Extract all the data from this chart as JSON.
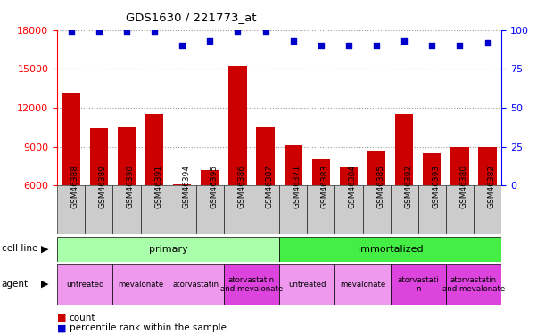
{
  "title": "GDS1630 / 221773_at",
  "samples": [
    "GSM46388",
    "GSM46389",
    "GSM46390",
    "GSM46391",
    "GSM46394",
    "GSM46395",
    "GSM46386",
    "GSM46387",
    "GSM46371",
    "GSM46383",
    "GSM46384",
    "GSM46385",
    "GSM46392",
    "GSM46393",
    "GSM46380",
    "GSM46382"
  ],
  "counts": [
    13200,
    10400,
    10500,
    11500,
    6100,
    7200,
    15200,
    10500,
    9100,
    8100,
    7400,
    8700,
    11500,
    8500,
    9000,
    9000
  ],
  "percentile_ranks": [
    99,
    99,
    99,
    99,
    90,
    93,
    99,
    99,
    93,
    90,
    90,
    90,
    93,
    90,
    90,
    92
  ],
  "bar_color": "#cc0000",
  "dot_color": "#0000cc",
  "ylim_left": [
    6000,
    18000
  ],
  "ylim_right": [
    0,
    100
  ],
  "yticks_left": [
    6000,
    9000,
    12000,
    15000,
    18000
  ],
  "yticks_right": [
    0,
    25,
    50,
    75,
    100
  ],
  "grid_color": "#999999",
  "baseline": 6000,
  "cell_line_data": [
    {
      "label": "primary",
      "start": 0,
      "end": 8,
      "color": "#aaffaa"
    },
    {
      "label": "immortalized",
      "start": 8,
      "end": 16,
      "color": "#44ee44"
    }
  ],
  "agent_data": [
    {
      "label": "untreated",
      "start": 0,
      "end": 2,
      "color": "#ee99ee"
    },
    {
      "label": "mevalonate",
      "start": 2,
      "end": 4,
      "color": "#ee99ee"
    },
    {
      "label": "atorvastatin",
      "start": 4,
      "end": 6,
      "color": "#ee99ee"
    },
    {
      "label": "atorvastatin\nand mevalonate",
      "start": 6,
      "end": 8,
      "color": "#dd44dd"
    },
    {
      "label": "untreated",
      "start": 8,
      "end": 10,
      "color": "#ee99ee"
    },
    {
      "label": "mevalonate",
      "start": 10,
      "end": 12,
      "color": "#ee99ee"
    },
    {
      "label": "atorvastati\nn",
      "start": 12,
      "end": 14,
      "color": "#dd44dd"
    },
    {
      "label": "atorvastatin\nand mevalonate",
      "start": 14,
      "end": 16,
      "color": "#dd44dd"
    }
  ],
  "xtick_bg": "#cccccc",
  "legend_items": [
    {
      "color": "#cc0000",
      "label": "count"
    },
    {
      "color": "#0000cc",
      "label": "percentile rank within the sample"
    }
  ]
}
